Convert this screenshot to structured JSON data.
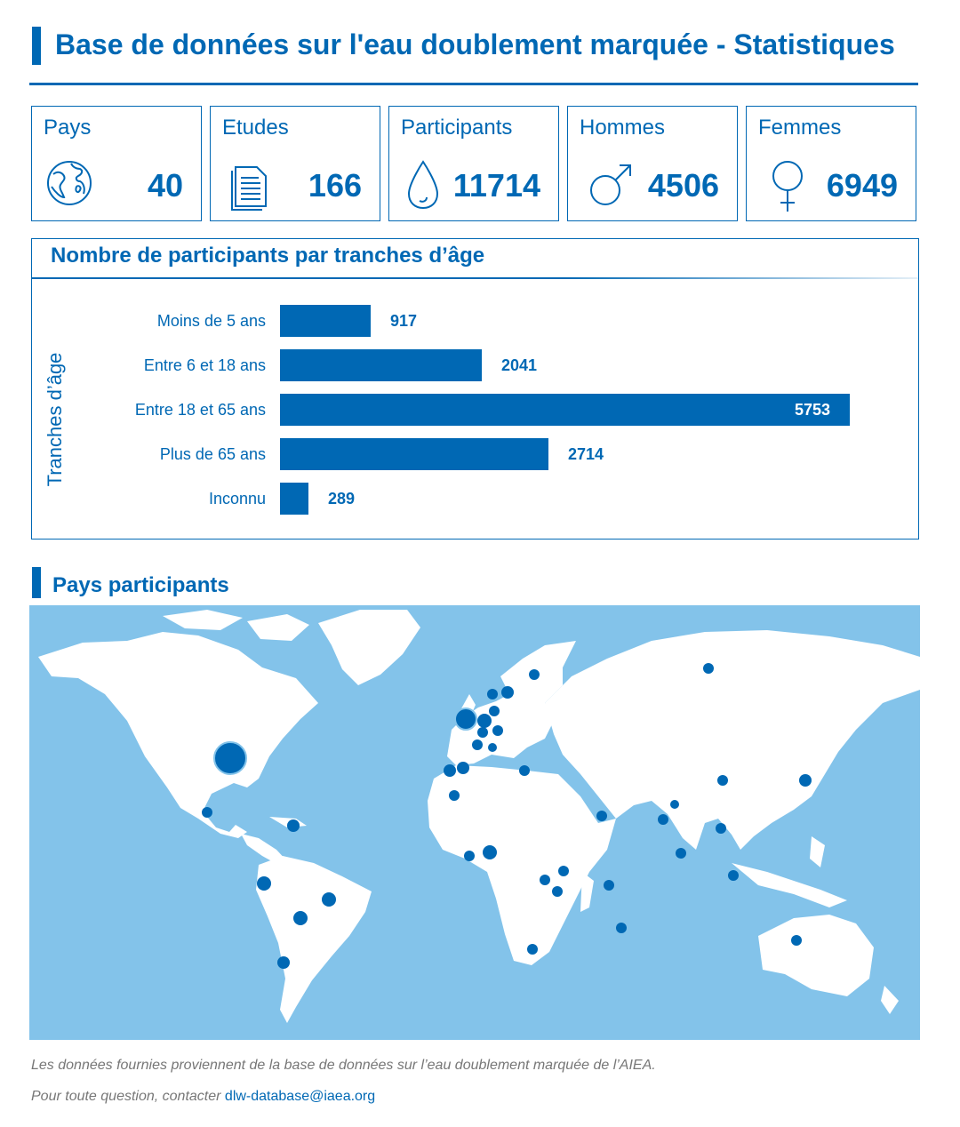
{
  "header": {
    "title": "Base de données sur l'eau doublement marquée - Statistiques"
  },
  "stats": [
    {
      "label": "Pays",
      "value": "40",
      "icon": "globe-icon"
    },
    {
      "label": "Etudes",
      "value": "166",
      "icon": "document-icon"
    },
    {
      "label": "Participants",
      "value": "11714",
      "icon": "water-drop-icon"
    },
    {
      "label": "Hommes",
      "value": "4506",
      "icon": "male-symbol-icon"
    },
    {
      "label": "Femmes",
      "value": "6949",
      "icon": "female-symbol-icon"
    }
  ],
  "chart_data": {
    "type": "bar",
    "orientation": "horizontal",
    "title": "Nombre de participants par tranches d’âge",
    "ylabel": "Tranches d’âge",
    "categories": [
      "Moins de 5 ans",
      "Entre 6 et 18 ans",
      "Entre 18 et 65 ans",
      "Plus de 65 ans",
      "Inconnu"
    ],
    "values": [
      917,
      2041,
      5753,
      2714,
      289
    ],
    "xlim": [
      0,
      5753
    ],
    "grid": false,
    "color": "#0068b4"
  },
  "map": {
    "title": "Pays participants",
    "ocean_color": "#83c3ea",
    "land_color": "#ffffff",
    "marker_color": "#0068b4"
  },
  "footer": {
    "note": "Les données fournies proviennent de la base de données sur l’eau doublement marquée de l’AIEA.",
    "contact_prefix": "Pour toute question,  contacter ",
    "contact_email": "dlw-database@iaea.org"
  }
}
